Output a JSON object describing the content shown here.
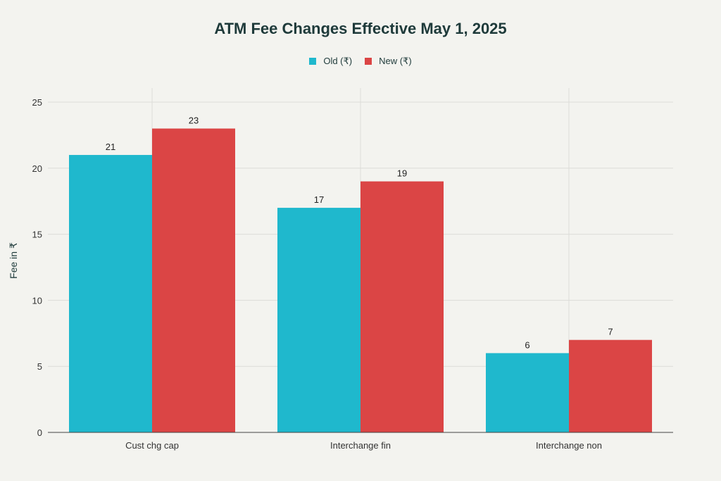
{
  "chart_data": {
    "type": "bar",
    "title": "ATM Fee Changes Effective May 1, 2025",
    "xlabel": "",
    "ylabel": "Fee in ₹",
    "categories": [
      "Cust chg cap",
      "Interchange fin",
      "Interchange non"
    ],
    "series": [
      {
        "name": "Old (₹)",
        "values": [
          21,
          17,
          6
        ],
        "color": "#1fb8cd"
      },
      {
        "name": "New (₹)",
        "values": [
          23,
          19,
          7
        ],
        "color": "#db4545"
      }
    ],
    "ylim": [
      0,
      25
    ],
    "yticks": [
      0,
      5,
      10,
      15,
      20,
      25
    ],
    "grid": true,
    "legend": "top-center"
  }
}
